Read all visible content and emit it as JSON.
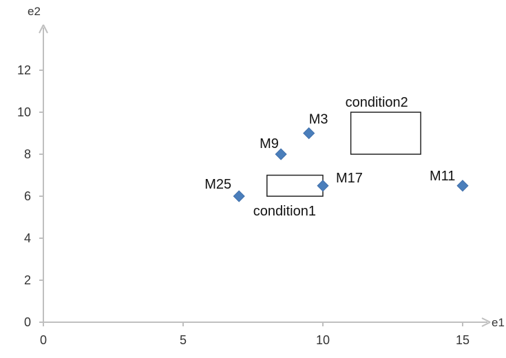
{
  "chart_data": {
    "type": "scatter",
    "xlabel": "e1",
    "ylabel": "e2",
    "xlim": [
      0,
      16
    ],
    "ylim": [
      0,
      14
    ],
    "x_ticks": [
      0,
      5,
      10,
      15
    ],
    "y_ticks": [
      0,
      2,
      4,
      6,
      8,
      10,
      12
    ],
    "grid": false,
    "marker": "diamond",
    "marker_color": "#4a7ebb",
    "axis_color": "#bfbfbf",
    "points": [
      {
        "label": "M3",
        "x": 9.5,
        "y": 9.0
      },
      {
        "label": "M9",
        "x": 8.5,
        "y": 8.0
      },
      {
        "label": "M25",
        "x": 7.0,
        "y": 6.0
      },
      {
        "label": "M17",
        "x": 10.0,
        "y": 6.5
      },
      {
        "label": "M11",
        "x": 15.0,
        "y": 6.5
      }
    ],
    "regions": [
      {
        "label": "condition1",
        "x": [
          8.0,
          10.0
        ],
        "y": [
          6.0,
          7.0
        ]
      },
      {
        "label": "condition2",
        "x": [
          11.0,
          13.5
        ],
        "y": [
          8.0,
          10.0
        ]
      }
    ]
  }
}
